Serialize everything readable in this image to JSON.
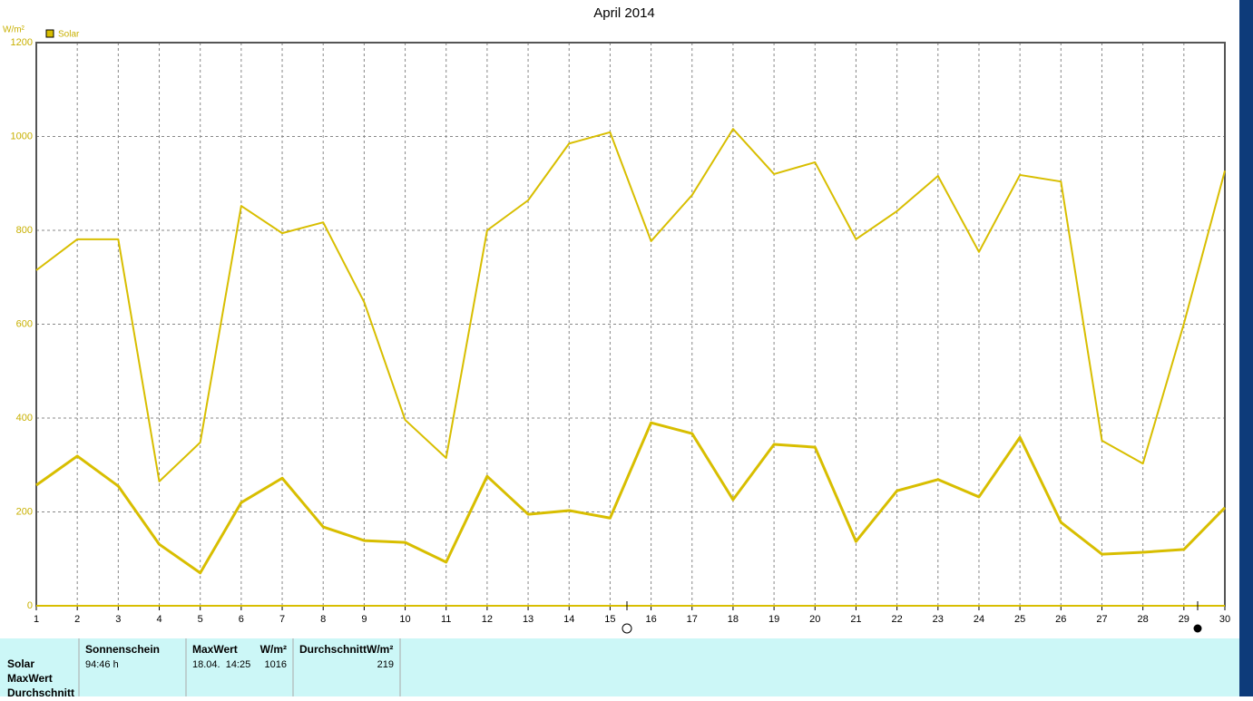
{
  "chart_data": {
    "type": "line",
    "title": "April 2014",
    "y_label": "W/m²",
    "legend": "Solar",
    "x": [
      1,
      2,
      3,
      4,
      5,
      6,
      7,
      8,
      9,
      10,
      11,
      12,
      13,
      14,
      15,
      16,
      17,
      18,
      19,
      20,
      21,
      22,
      23,
      24,
      25,
      26,
      27,
      28,
      29,
      30
    ],
    "xlim": [
      1,
      30
    ],
    "series": [
      {
        "name": "MaxWert",
        "color": "#d8be00",
        "values": [
          715,
          781,
          781,
          265,
          348,
          852,
          794,
          817,
          647,
          396,
          315,
          800,
          864,
          985,
          1009,
          777,
          875,
          1016,
          920,
          945,
          781,
          841,
          916,
          754,
          918,
          904,
          352,
          303,
          601,
          927
        ]
      },
      {
        "name": "Durchschnitt",
        "color": "#d8be00",
        "values": [
          257,
          319,
          255,
          131,
          70,
          220,
          272,
          168,
          139,
          135,
          93,
          276,
          195,
          203,
          187,
          390,
          367,
          226,
          344,
          338,
          137,
          245,
          269,
          232,
          359,
          178,
          110,
          114,
          120,
          209
        ]
      }
    ],
    "ylim": [
      0,
      1200
    ],
    "yticks": [
      0,
      200,
      400,
      600,
      800,
      1000,
      1200
    ],
    "grid": true
  },
  "summary": {
    "row_labels": [
      "Solar",
      "MaxWert",
      "Durchschnitt"
    ],
    "headers": [
      "Sonnenschein",
      "MaxWert",
      "W/m²",
      "DurchschnittW/m²"
    ],
    "values": [
      "94:46 h",
      "18.04.  14:25",
      "1016",
      "219"
    ]
  }
}
